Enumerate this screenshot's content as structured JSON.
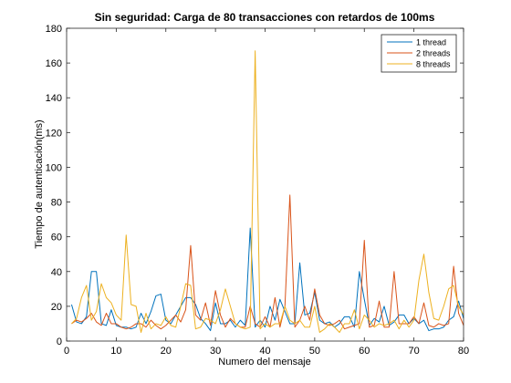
{
  "chart_data": {
    "type": "line",
    "title": "Sin seguridad: Carga de 80 transacciones con retardos de 100ms",
    "xlabel": "Numero del mensaje",
    "ylabel": "Tiempo de autenticación(ms)",
    "xlim": [
      0,
      80
    ],
    "ylim": [
      0,
      180
    ],
    "xticks": [
      0,
      10,
      20,
      30,
      40,
      50,
      60,
      70,
      80
    ],
    "yticks": [
      0,
      20,
      40,
      60,
      80,
      100,
      120,
      140,
      160,
      180
    ],
    "grid": false,
    "legend_position": "top-right",
    "x": [
      1,
      2,
      3,
      4,
      5,
      6,
      7,
      8,
      9,
      10,
      11,
      12,
      13,
      14,
      15,
      16,
      17,
      18,
      19,
      20,
      21,
      22,
      23,
      24,
      25,
      26,
      27,
      28,
      29,
      30,
      31,
      32,
      33,
      34,
      35,
      36,
      37,
      38,
      39,
      40,
      41,
      42,
      43,
      44,
      45,
      46,
      47,
      48,
      49,
      50,
      51,
      52,
      53,
      54,
      55,
      56,
      57,
      58,
      59,
      60,
      61,
      62,
      63,
      64,
      65,
      66,
      67,
      68,
      69,
      70,
      71,
      72,
      73,
      74,
      75,
      76,
      77,
      78,
      79,
      80
    ],
    "series": [
      {
        "name": "1 thread",
        "color": "#0072BD",
        "values": [
          21,
          11,
          10,
          14,
          40,
          40,
          10,
          9,
          18,
          9,
          8,
          8,
          7,
          8,
          16,
          10,
          17,
          26,
          27,
          12,
          10,
          15,
          20,
          25,
          25,
          21,
          13,
          10,
          6,
          22,
          10,
          10,
          12,
          8,
          12,
          9,
          65,
          8,
          12,
          8,
          20,
          12,
          24,
          17,
          10,
          10,
          45,
          15,
          16,
          28,
          12,
          10,
          11,
          8,
          10,
          14,
          14,
          8,
          40,
          24,
          9,
          13,
          11,
          20,
          9,
          11,
          15,
          15,
          10,
          13,
          10,
          12,
          6,
          7,
          7,
          8,
          12,
          14,
          23,
          13
        ]
      },
      {
        "name": "2 threads",
        "color": "#D95319",
        "values": [
          10,
          12,
          11,
          13,
          16,
          11,
          9,
          16,
          10,
          10,
          8,
          7,
          8,
          10,
          10,
          8,
          12,
          9,
          7,
          9,
          12,
          15,
          11,
          18,
          55,
          15,
          12,
          22,
          9,
          29,
          15,
          8,
          13,
          10,
          8,
          8,
          20,
          10,
          8,
          14,
          8,
          25,
          8,
          20,
          84,
          8,
          12,
          20,
          12,
          30,
          15,
          10,
          9,
          10,
          12,
          7,
          8,
          9,
          10,
          58,
          8,
          9,
          23,
          8,
          8,
          40,
          10,
          10,
          10,
          14,
          10,
          22,
          9,
          8,
          10,
          9,
          10,
          43,
          16,
          9
        ]
      },
      {
        "name": "8 threads",
        "color": "#EDB120",
        "values": [
          10,
          13,
          25,
          32,
          12,
          17,
          33,
          25,
          22,
          15,
          12,
          61,
          21,
          20,
          5,
          16,
          7,
          10,
          9,
          14,
          9,
          8,
          20,
          33,
          32,
          7,
          8,
          13,
          12,
          10,
          18,
          30,
          20,
          10,
          8,
          7,
          8,
          167,
          7,
          10,
          8,
          10,
          10,
          20,
          12,
          10,
          12,
          8,
          8,
          20,
          5,
          7,
          10,
          8,
          5,
          10,
          10,
          18,
          7,
          15,
          12,
          8,
          10,
          9,
          10,
          12,
          7,
          12,
          8,
          12,
          35,
          50,
          28,
          13,
          12,
          20,
          30,
          32,
          20,
          15
        ]
      }
    ]
  }
}
